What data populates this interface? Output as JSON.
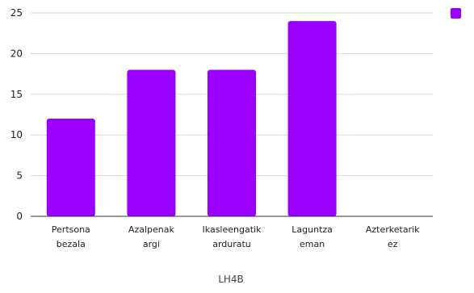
{
  "chart_data": {
    "type": "bar",
    "categories": [
      [
        "Pertsona",
        "bezala"
      ],
      [
        "Azalpenak",
        "argi"
      ],
      [
        "Ikasleengatik",
        "arduratu"
      ],
      [
        "Laguntza",
        "eman"
      ],
      [
        "Azterketarik",
        "ez"
      ]
    ],
    "values": [
      12,
      18,
      18,
      24,
      0
    ],
    "xlabel": "LH4B",
    "ylabel": "",
    "ylim": [
      0,
      25
    ],
    "yticks": [
      0,
      5,
      10,
      15,
      20,
      25
    ],
    "grid": true,
    "legend": "top-right",
    "series_color": "#9900ff"
  }
}
